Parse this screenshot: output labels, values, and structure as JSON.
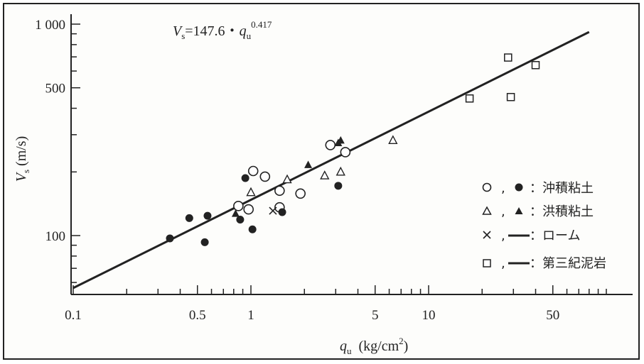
{
  "chart_data": {
    "type": "scatter",
    "x_scale": "log",
    "y_scale": "log",
    "xlim": [
      0.1,
      120
    ],
    "ylim": [
      55,
      1100
    ],
    "x_ticks": [
      {
        "value": 0.1,
        "label": "0.1"
      },
      {
        "value": 0.5,
        "label": "0.5"
      },
      {
        "value": 1,
        "label": "1"
      },
      {
        "value": 5,
        "label": "5"
      },
      {
        "value": 10,
        "label": "10"
      },
      {
        "value": 50,
        "label": "50"
      }
    ],
    "y_ticks": [
      {
        "value": 100,
        "label": "100"
      },
      {
        "value": 500,
        "label": "500"
      },
      {
        "value": 1000,
        "label": "1 000"
      }
    ],
    "ylabel": {
      "main": "V",
      "sub": "s",
      "unit": " (m/s)"
    },
    "xlabel": {
      "main": "q",
      "sub": "u",
      "unit": "  (kg/cm",
      "sup": "2",
      "close": ")"
    },
    "equation": {
      "lhs": "V",
      "lhs_sub": "s",
      "mid": "=147.6・",
      "var": "q",
      "var_sub": "u",
      "exp": "0.417"
    },
    "fit": {
      "coef": 147.6,
      "exp": 0.417,
      "x_range": [
        0.1,
        80
      ]
    },
    "grid": false,
    "legend_position": "right",
    "legend": [
      {
        "symbols": [
          "○",
          "●"
        ],
        "sep": ",",
        "text": "：沖積粘土"
      },
      {
        "symbols": [
          "△",
          "▲"
        ],
        "sep": ",",
        "text": "：洪積粘土"
      },
      {
        "symbols": [
          "×",
          "line"
        ],
        "sep": ",",
        "text": "：ローム"
      },
      {
        "symbols": [
          "□",
          "line"
        ],
        "sep": ",",
        "text": "：第三紀泥岩"
      }
    ],
    "series": [
      {
        "marker": "circle-open",
        "points": [
          [
            0.85,
            138
          ],
          [
            0.97,
            133
          ],
          [
            1.03,
            202
          ],
          [
            1.2,
            190
          ],
          [
            1.45,
            163
          ],
          [
            1.45,
            136
          ],
          [
            1.9,
            158
          ],
          [
            2.8,
            268
          ],
          [
            3.4,
            248
          ]
        ]
      },
      {
        "marker": "circle-filled",
        "points": [
          [
            0.35,
            97
          ],
          [
            0.45,
            121
          ],
          [
            0.55,
            93
          ],
          [
            0.57,
            124
          ],
          [
            0.87,
            119
          ],
          [
            0.93,
            187
          ],
          [
            1.02,
            107
          ],
          [
            1.5,
            129
          ],
          [
            3.1,
            172
          ]
        ]
      },
      {
        "marker": "triangle-open",
        "points": [
          [
            1.0,
            160
          ],
          [
            1.6,
            184
          ],
          [
            2.6,
            192
          ],
          [
            3.2,
            200
          ],
          [
            6.3,
            282
          ]
        ]
      },
      {
        "marker": "triangle-filled",
        "points": [
          [
            0.82,
            127
          ],
          [
            2.1,
            216
          ],
          [
            3.1,
            274
          ],
          [
            3.2,
            282
          ]
        ]
      },
      {
        "marker": "cross",
        "points": [
          [
            1.33,
            131
          ]
        ]
      },
      {
        "marker": "square-open",
        "points": [
          [
            17,
            445
          ],
          [
            29,
            452
          ],
          [
            28,
            695
          ],
          [
            40,
            640
          ]
        ]
      }
    ]
  }
}
